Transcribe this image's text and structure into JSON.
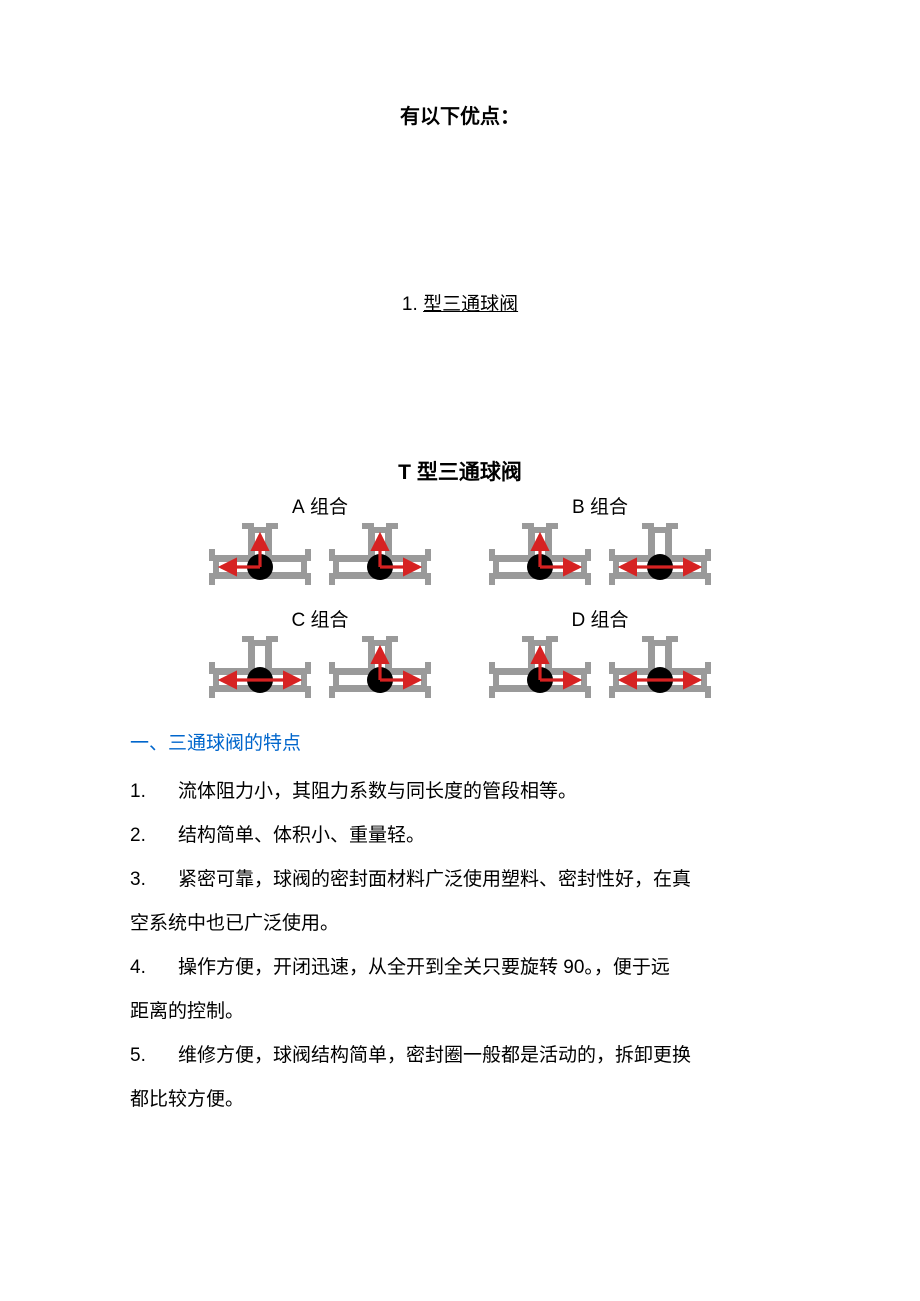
{
  "title_main": "有以下优点：",
  "title_sub_num": "1.",
  "title_sub_text": "型三通球阀",
  "diagram": {
    "title_latin": "T",
    "title_cn": "型三通球阀",
    "body_color": "#9a9a9a",
    "ball_color": "#000000",
    "arrow_color": "#d62222",
    "bg_color": "#ffffff",
    "groups": [
      {
        "label_latin": "A",
        "label_cn": "组合",
        "valves": [
          {
            "arrows": [
              "left",
              "up"
            ]
          },
          {
            "arrows": [
              "up",
              "right"
            ]
          }
        ]
      },
      {
        "label_latin": "B",
        "label_cn": "组合",
        "valves": [
          {
            "arrows": [
              "up",
              "right"
            ]
          },
          {
            "arrows": [
              "left",
              "right"
            ]
          }
        ]
      },
      {
        "label_latin": "C",
        "label_cn": "组合",
        "valves": [
          {
            "arrows": [
              "left",
              "right"
            ]
          },
          {
            "arrows": [
              "up",
              "right"
            ]
          }
        ]
      },
      {
        "label_latin": "D",
        "label_cn": "组合",
        "valves": [
          {
            "arrows": [
              "up",
              "right"
            ]
          },
          {
            "arrows": [
              "left",
              "right"
            ]
          }
        ]
      }
    ]
  },
  "section_heading": "一、三通球阀的特点",
  "items": [
    {
      "num": "1.",
      "text": "流体阻力小，其阻力系数与同长度的管段相等。"
    },
    {
      "num": "2.",
      "text": "结构简单、体积小、重量轻。"
    },
    {
      "num": "3.",
      "text": "紧密可靠，球阀的密封面材料广泛使用塑料、密封性好，在真",
      "cont": "空系统中也已广泛使用。"
    },
    {
      "num": "4.",
      "text_pre": "操作方便，开闭迅速，从全开到全关只要旋转 ",
      "inline_num": "90",
      "text_post": "。，便于远",
      "cont": "距离的控制。"
    },
    {
      "num": "5.",
      "text": "维修方便，球阀结构简单，密封圈一般都是活动的，拆卸更换",
      "cont": "都比较方便。"
    }
  ]
}
